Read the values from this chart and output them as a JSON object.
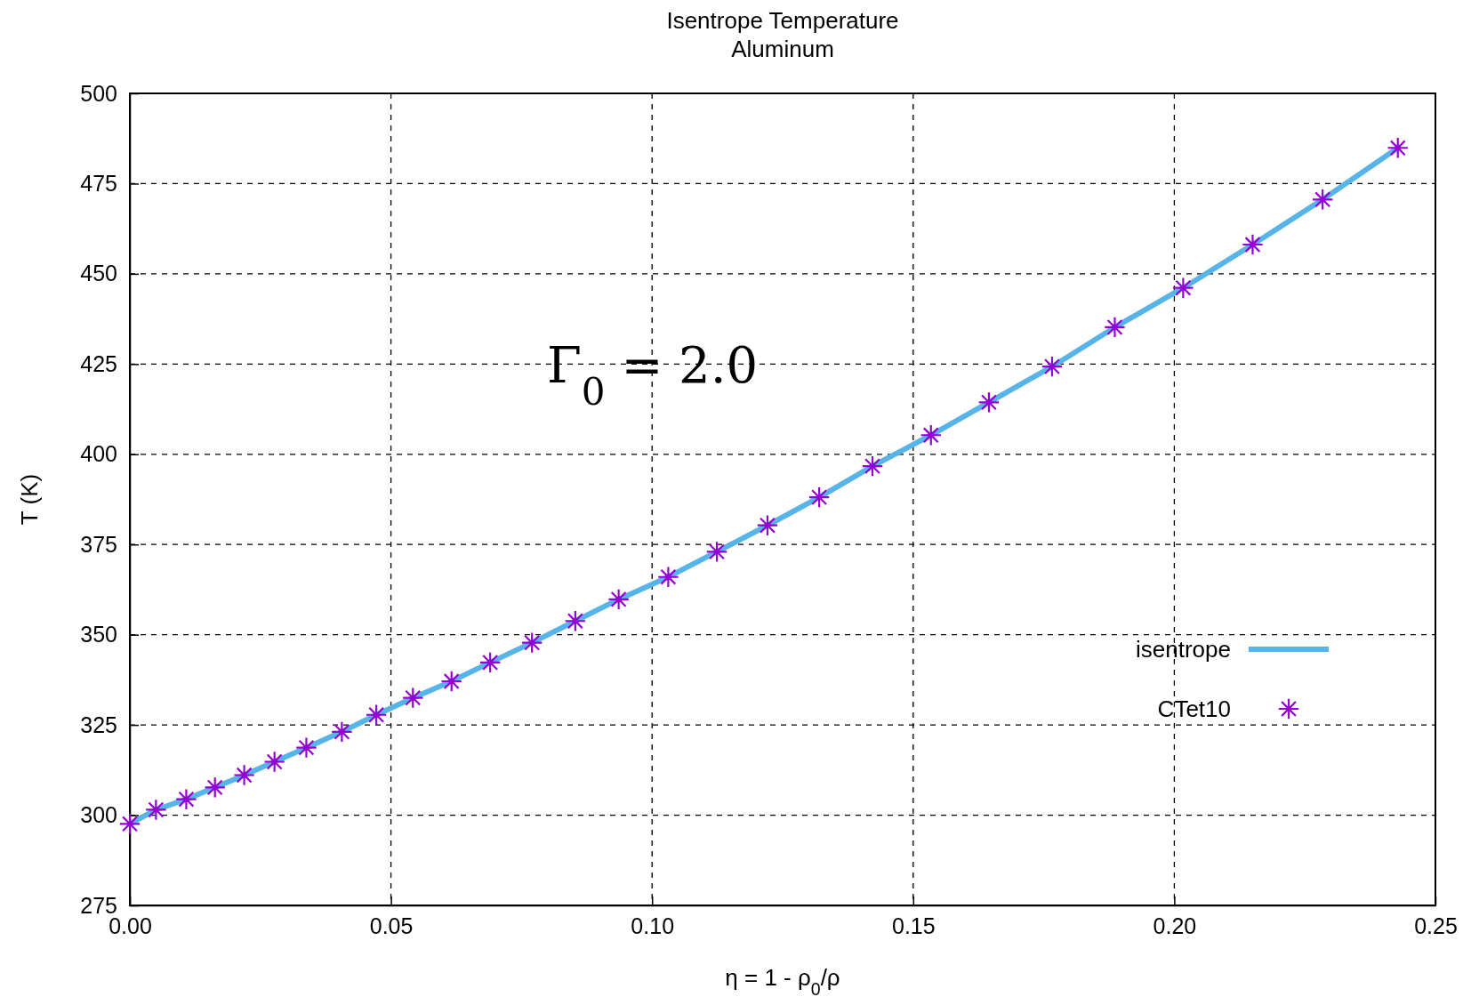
{
  "chart_data": {
    "type": "line",
    "title": "Isentrope Temperature",
    "subtitle": "Aluminum",
    "xlabel": "η = 1 - ρ$_{0}$/ρ",
    "ylabel": "T (K)",
    "annotations": [
      "Γ$_{0}$ = 2.0"
    ],
    "xlim": [
      0,
      0.25
    ],
    "xticks": [
      {
        "value": 0,
        "label": "0.00"
      },
      {
        "value": 0.05,
        "label": "0.05"
      },
      {
        "value": 0.1,
        "label": "0.10"
      },
      {
        "value": 0.15,
        "label": "0.15"
      },
      {
        "value": 0.2,
        "label": "0.20"
      },
      {
        "value": 0.25,
        "label": "0.25"
      }
    ],
    "ylim": [
      275,
      500
    ],
    "yticks": [
      275,
      300,
      325,
      350,
      375,
      400,
      425,
      450,
      475,
      500
    ],
    "grid": true,
    "legend": "right",
    "x": [
      0,
      0.005,
      0.0108,
      0.0163,
      0.0219,
      0.0277,
      0.0338,
      0.0406,
      0.0472,
      0.0542,
      0.0616,
      0.069,
      0.077,
      0.0853,
      0.0936,
      0.1031,
      0.1124,
      0.1221,
      0.132,
      0.1422,
      0.1534,
      0.1645,
      0.1766,
      0.1886,
      0.2017,
      0.215,
      0.2284,
      0.2428
    ],
    "series": [
      {
        "name": "isentrope",
        "color": "#56b4e9",
        "marker": "none",
        "line_style": "solid",
        "values": [
          297.6,
          301.5,
          304.4,
          307.7,
          311.1,
          314.8,
          318.7,
          323.1,
          327.8,
          332.5,
          337.1,
          342.3,
          347.8,
          353.8,
          359.8,
          366.0,
          373.0,
          380.3,
          388.1,
          396.7,
          405.3,
          414.4,
          424.3,
          435.2,
          446.1,
          458.1,
          470.6,
          484.9
        ]
      },
      {
        "name": "CTet10",
        "type": "scatter",
        "color": "#9400d3",
        "marker": "star",
        "values": [
          297.6,
          301.5,
          304.4,
          307.7,
          311.1,
          314.8,
          318.7,
          323.1,
          327.8,
          332.5,
          337.1,
          342.3,
          347.8,
          353.8,
          359.8,
          366.0,
          373.0,
          380.3,
          388.1,
          396.7,
          405.3,
          414.4,
          424.3,
          435.2,
          446.1,
          458.1,
          470.6,
          484.9
        ]
      }
    ]
  }
}
